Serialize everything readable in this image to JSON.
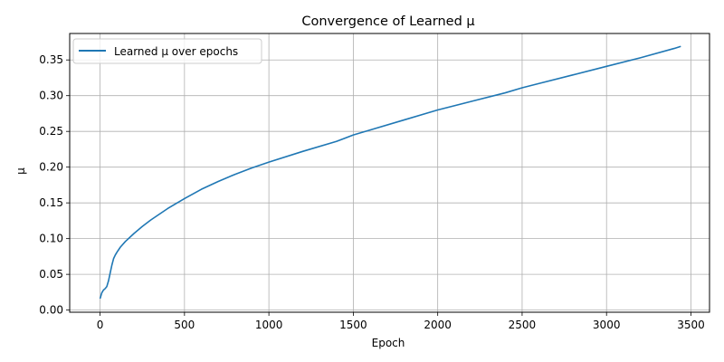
{
  "chart_data": {
    "type": "line",
    "title": "Convergence of Learned μ",
    "xlabel": "Epoch",
    "ylabel": "μ",
    "xlim": [
      -180,
      3610
    ],
    "ylim": [
      -0.003,
      0.387
    ],
    "xticks": [
      0,
      500,
      1000,
      1500,
      2000,
      2500,
      3000,
      3500
    ],
    "yticks": [
      0.0,
      0.05,
      0.1,
      0.15,
      0.2,
      0.25,
      0.3,
      0.35
    ],
    "xtick_labels": [
      "0",
      "500",
      "1000",
      "1500",
      "2000",
      "2500",
      "3000",
      "3500"
    ],
    "ytick_labels": [
      "0.00",
      "0.05",
      "0.10",
      "0.15",
      "0.20",
      "0.25",
      "0.30",
      "0.35"
    ],
    "grid": true,
    "legend_position": "top-left",
    "series": [
      {
        "name": "Learned μ over epochs",
        "color": "#1f77b4",
        "x": [
          0,
          10,
          20,
          30,
          40,
          50,
          60,
          70,
          80,
          90,
          100,
          120,
          150,
          200,
          250,
          300,
          400,
          500,
          600,
          700,
          800,
          900,
          1000,
          1200,
          1400,
          1500,
          1600,
          1800,
          2000,
          2200,
          2400,
          2500,
          2600,
          2800,
          3000,
          3200,
          3400,
          3440
        ],
        "y": [
          0.016,
          0.024,
          0.028,
          0.03,
          0.033,
          0.041,
          0.052,
          0.063,
          0.072,
          0.077,
          0.081,
          0.088,
          0.096,
          0.107,
          0.117,
          0.126,
          0.142,
          0.156,
          0.169,
          0.18,
          0.19,
          0.199,
          0.207,
          0.222,
          0.236,
          0.245,
          0.252,
          0.266,
          0.28,
          0.292,
          0.304,
          0.311,
          0.317,
          0.329,
          0.341,
          0.353,
          0.366,
          0.369
        ]
      }
    ]
  }
}
